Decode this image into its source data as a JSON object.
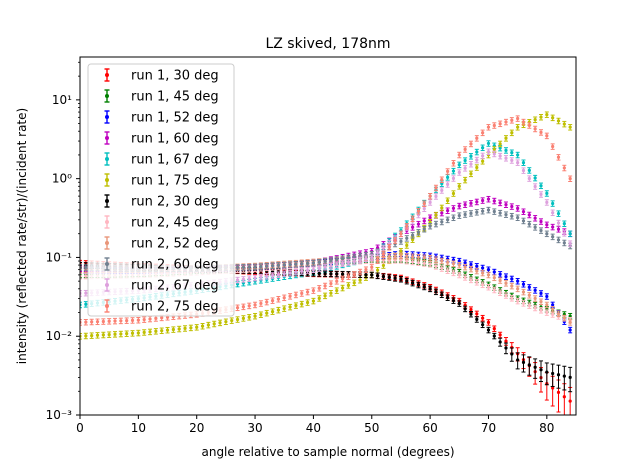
{
  "chart_data": {
    "type": "scatter",
    "title": "LZ skived, 178nm",
    "xlabel": "angle relative to sample normal (degrees)",
    "ylabel": "intensity (reflected rate/str)/(incident rate)",
    "xlim": [
      0,
      85
    ],
    "ylim": [
      0.001,
      35
    ],
    "yscale": "log",
    "grid": false,
    "legend_position": "upper-left",
    "x_ticks": [
      0,
      10,
      20,
      30,
      40,
      50,
      60,
      70,
      80
    ],
    "x_tick_labels": [
      "0",
      "10",
      "20",
      "30",
      "40",
      "50",
      "60",
      "70",
      "80"
    ],
    "y_ticks": [
      0.001,
      0.01,
      0.1,
      1,
      10
    ],
    "y_tick_labels": [
      "10⁻³",
      "10⁻²",
      "10⁻¹",
      "10⁰",
      "10¹"
    ],
    "series": [
      {
        "name": "run 1, 30 deg",
        "color": "#ff0000",
        "points": [
          [
            0,
            0.085
          ],
          [
            10,
            0.078
          ],
          [
            20,
            0.072
          ],
          [
            30,
            0.066
          ],
          [
            40,
            0.062
          ],
          [
            50,
            0.06
          ],
          [
            55,
            0.055
          ],
          [
            60,
            0.042
          ],
          [
            65,
            0.028
          ],
          [
            70,
            0.015
          ],
          [
            75,
            0.006
          ],
          [
            80,
            0.0025
          ],
          [
            84,
            0.0015
          ]
        ]
      },
      {
        "name": "run 1, 45 deg",
        "color": "#008000",
        "points": [
          [
            0,
            0.06
          ],
          [
            10,
            0.062
          ],
          [
            20,
            0.068
          ],
          [
            30,
            0.075
          ],
          [
            40,
            0.085
          ],
          [
            50,
            0.095
          ],
          [
            55,
            0.095
          ],
          [
            60,
            0.085
          ],
          [
            65,
            0.065
          ],
          [
            70,
            0.045
          ],
          [
            75,
            0.03
          ],
          [
            80,
            0.022
          ],
          [
            84,
            0.018
          ]
        ]
      },
      {
        "name": "run 1, 52 deg",
        "color": "#0000ff",
        "points": [
          [
            0,
            0.068
          ],
          [
            10,
            0.068
          ],
          [
            20,
            0.07
          ],
          [
            30,
            0.075
          ],
          [
            40,
            0.085
          ],
          [
            50,
            0.1
          ],
          [
            55,
            0.112
          ],
          [
            60,
            0.105
          ],
          [
            65,
            0.09
          ],
          [
            70,
            0.07
          ],
          [
            75,
            0.05
          ],
          [
            80,
            0.032
          ],
          [
            84,
            0.012
          ]
        ]
      },
      {
        "name": "run 1, 60 deg",
        "color": "#bf00bf",
        "points": [
          [
            0,
            0.072
          ],
          [
            10,
            0.07
          ],
          [
            20,
            0.07
          ],
          [
            30,
            0.075
          ],
          [
            40,
            0.085
          ],
          [
            50,
            0.12
          ],
          [
            55,
            0.2
          ],
          [
            60,
            0.32
          ],
          [
            65,
            0.45
          ],
          [
            70,
            0.55
          ],
          [
            75,
            0.42
          ],
          [
            80,
            0.26
          ],
          [
            84,
            0.2
          ]
        ]
      },
      {
        "name": "run 1, 67 deg",
        "color": "#00bfbf",
        "points": [
          [
            0,
            0.025
          ],
          [
            10,
            0.03
          ],
          [
            20,
            0.038
          ],
          [
            30,
            0.05
          ],
          [
            40,
            0.065
          ],
          [
            50,
            0.1
          ],
          [
            55,
            0.22
          ],
          [
            60,
            0.6
          ],
          [
            65,
            1.5
          ],
          [
            70,
            2.8
          ],
          [
            75,
            2.0
          ],
          [
            80,
            0.65
          ],
          [
            84,
            0.2
          ]
        ]
      },
      {
        "name": "run 1, 75 deg",
        "color": "#bfbf00",
        "points": [
          [
            0,
            0.01
          ],
          [
            10,
            0.011
          ],
          [
            20,
            0.013
          ],
          [
            30,
            0.018
          ],
          [
            40,
            0.028
          ],
          [
            50,
            0.06
          ],
          [
            55,
            0.12
          ],
          [
            60,
            0.28
          ],
          [
            65,
            0.8
          ],
          [
            70,
            2.0
          ],
          [
            75,
            4.5
          ],
          [
            80,
            6.5
          ],
          [
            84,
            4.5
          ]
        ]
      },
      {
        "name": "run 2, 30 deg",
        "color": "#000000",
        "points": [
          [
            0,
            0.08
          ],
          [
            10,
            0.075
          ],
          [
            20,
            0.07
          ],
          [
            30,
            0.068
          ],
          [
            40,
            0.063
          ],
          [
            50,
            0.06
          ],
          [
            55,
            0.053
          ],
          [
            60,
            0.04
          ],
          [
            65,
            0.026
          ],
          [
            70,
            0.012
          ],
          [
            75,
            0.005
          ],
          [
            80,
            0.0035
          ],
          [
            84,
            0.003
          ]
        ]
      },
      {
        "name": "run 2, 45 deg",
        "color": "#ffb6c1",
        "points": [
          [
            0,
            0.058
          ],
          [
            10,
            0.06
          ],
          [
            20,
            0.065
          ],
          [
            30,
            0.072
          ],
          [
            40,
            0.082
          ],
          [
            50,
            0.092
          ],
          [
            55,
            0.092
          ],
          [
            60,
            0.082
          ],
          [
            65,
            0.06
          ],
          [
            70,
            0.042
          ],
          [
            75,
            0.028
          ],
          [
            80,
            0.02
          ],
          [
            84,
            0.016
          ]
        ]
      },
      {
        "name": "run 2, 52 deg",
        "color": "#e9967a",
        "points": [
          [
            0,
            0.07
          ],
          [
            10,
            0.07
          ],
          [
            20,
            0.072
          ],
          [
            30,
            0.078
          ],
          [
            40,
            0.088
          ],
          [
            50,
            0.1
          ],
          [
            55,
            0.105
          ],
          [
            60,
            0.098
          ],
          [
            65,
            0.08
          ],
          [
            70,
            0.06
          ],
          [
            75,
            0.04
          ],
          [
            80,
            0.025
          ],
          [
            84,
            0.015
          ]
        ]
      },
      {
        "name": "run 2, 60 deg",
        "color": "#708090",
        "points": [
          [
            0,
            0.075
          ],
          [
            10,
            0.072
          ],
          [
            20,
            0.072
          ],
          [
            30,
            0.076
          ],
          [
            40,
            0.085
          ],
          [
            50,
            0.11
          ],
          [
            55,
            0.16
          ],
          [
            60,
            0.25
          ],
          [
            65,
            0.34
          ],
          [
            70,
            0.4
          ],
          [
            75,
            0.32
          ],
          [
            80,
            0.2
          ],
          [
            84,
            0.14
          ]
        ]
      },
      {
        "name": "run 2, 67 deg",
        "color": "#dda0dd",
        "points": [
          [
            0,
            0.035
          ],
          [
            10,
            0.038
          ],
          [
            20,
            0.045
          ],
          [
            30,
            0.055
          ],
          [
            40,
            0.07
          ],
          [
            50,
            0.1
          ],
          [
            55,
            0.2
          ],
          [
            60,
            0.5
          ],
          [
            65,
            1.2
          ],
          [
            70,
            2.2
          ],
          [
            75,
            1.6
          ],
          [
            80,
            0.5
          ],
          [
            84,
            0.15
          ]
        ]
      },
      {
        "name": "run 2, 75 deg",
        "color": "#fa8072",
        "points": [
          [
            0,
            0.015
          ],
          [
            10,
            0.016
          ],
          [
            20,
            0.019
          ],
          [
            30,
            0.025
          ],
          [
            40,
            0.038
          ],
          [
            50,
            0.075
          ],
          [
            55,
            0.2
          ],
          [
            60,
            0.6
          ],
          [
            65,
            2.0
          ],
          [
            70,
            4.5
          ],
          [
            75,
            5.8
          ],
          [
            80,
            3.5
          ],
          [
            84,
            1.0
          ]
        ]
      }
    ]
  }
}
